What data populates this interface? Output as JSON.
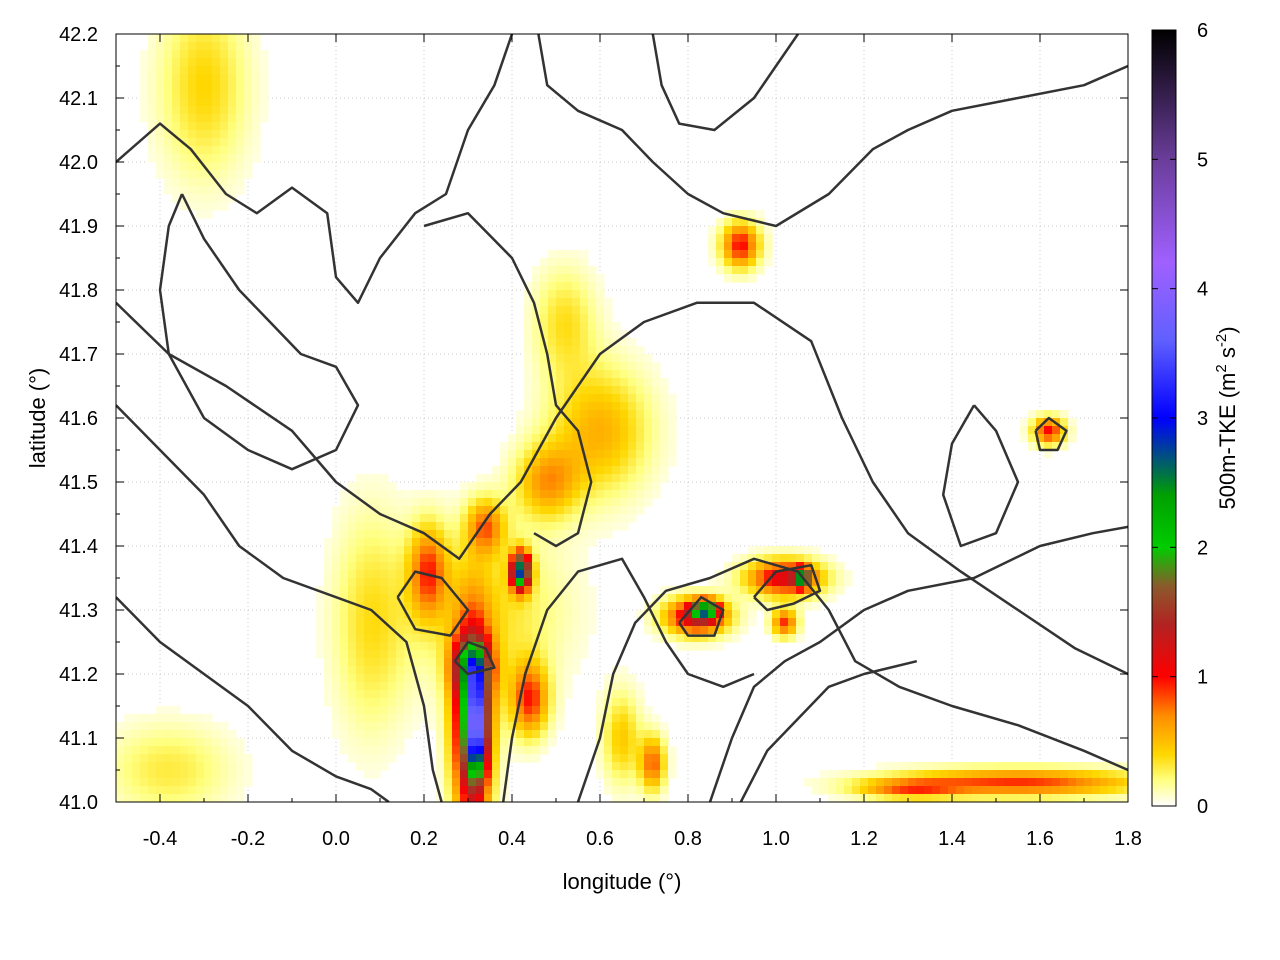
{
  "chart_data": {
    "type": "heatmap",
    "title": "",
    "xlabel": "longitude (°)",
    "ylabel": "latitude (°)",
    "xlim": [
      -0.5,
      1.8
    ],
    "ylim": [
      41.0,
      42.2
    ],
    "x_ticks": [
      "-0.4",
      "-0.2",
      "0.0",
      "0.2",
      "0.4",
      "0.6",
      "0.8",
      "1.0",
      "1.2",
      "1.4",
      "1.6",
      "1.8"
    ],
    "x_tick_values": [
      -0.4,
      -0.2,
      0.0,
      0.2,
      0.4,
      0.6,
      0.8,
      1.0,
      1.2,
      1.4,
      1.6,
      1.8
    ],
    "y_ticks": [
      "41.0",
      "41.1",
      "41.2",
      "41.3",
      "41.4",
      "41.5",
      "41.6",
      "41.7",
      "41.8",
      "41.9",
      "42.0",
      "42.1",
      "42.2"
    ],
    "y_tick_values": [
      41.0,
      41.1,
      41.2,
      41.3,
      41.4,
      41.5,
      41.6,
      41.7,
      41.8,
      41.9,
      42.0,
      42.1,
      42.2
    ],
    "grid": true,
    "colorbar": {
      "label_main": "500m-TKE (m",
      "label_sup1": "2",
      "label_mid": " s",
      "label_sup2": "-2",
      "label_end": ")",
      "range": [
        0,
        6
      ],
      "ticks": [
        "0",
        "1",
        "2",
        "3",
        "4",
        "5",
        "6"
      ],
      "tick_values": [
        0,
        1,
        2,
        3,
        4,
        5,
        6
      ],
      "colormap": [
        {
          "v": 0.0,
          "c": "#ffffff"
        },
        {
          "v": 0.2,
          "c": "#ffff80"
        },
        {
          "v": 0.4,
          "c": "#ffd700"
        },
        {
          "v": 0.7,
          "c": "#ff8c00"
        },
        {
          "v": 1.0,
          "c": "#ff0000"
        },
        {
          "v": 1.4,
          "c": "#b22222"
        },
        {
          "v": 1.7,
          "c": "#8b5a2b"
        },
        {
          "v": 2.0,
          "c": "#00cc00"
        },
        {
          "v": 2.4,
          "c": "#00a000"
        },
        {
          "v": 3.0,
          "c": "#0000ff"
        },
        {
          "v": 3.6,
          "c": "#6060ff"
        },
        {
          "v": 4.2,
          "c": "#a060ff"
        },
        {
          "v": 5.0,
          "c": "#6a3d9a"
        },
        {
          "v": 6.0,
          "c": "#000000"
        }
      ]
    },
    "hotspots": [
      {
        "lon": 0.31,
        "lat": 41.12,
        "slon": 0.03,
        "slat": 0.11,
        "v": 1.9
      },
      {
        "lon": 0.32,
        "lat": 41.12,
        "slon": 0.015,
        "slat": 0.05,
        "v": 2.3
      },
      {
        "lon": 0.31,
        "lat": 41.21,
        "slon": 0.03,
        "slat": 0.03,
        "v": 1.3
      },
      {
        "lon": 0.21,
        "lat": 41.36,
        "slon": 0.03,
        "slat": 0.05,
        "v": 0.8
      },
      {
        "lon": 0.35,
        "lat": 41.3,
        "slon": 0.12,
        "slat": 0.09,
        "v": 0.35
      },
      {
        "lon": 0.42,
        "lat": 41.36,
        "slon": 0.015,
        "slat": 0.02,
        "v": 2.6
      },
      {
        "lon": 0.44,
        "lat": 41.16,
        "slon": 0.03,
        "slat": 0.04,
        "v": 0.9
      },
      {
        "lon": 0.82,
        "lat": 41.29,
        "slon": 0.05,
        "slat": 0.02,
        "v": 1.3
      },
      {
        "lon": 0.84,
        "lat": 41.3,
        "slon": 0.02,
        "slat": 0.01,
        "v": 1.8
      },
      {
        "lon": 1.02,
        "lat": 41.35,
        "slon": 0.06,
        "slat": 0.02,
        "v": 1.2
      },
      {
        "lon": 1.06,
        "lat": 41.35,
        "slon": 0.012,
        "slat": 0.01,
        "v": 2.0
      },
      {
        "lon": 0.92,
        "lat": 41.87,
        "slon": 0.03,
        "slat": 0.025,
        "v": 1.0
      },
      {
        "lon": 0.6,
        "lat": 41.58,
        "slon": 0.08,
        "slat": 0.07,
        "v": 0.55
      },
      {
        "lon": 0.48,
        "lat": 41.5,
        "slon": 0.05,
        "slat": 0.04,
        "v": 0.6
      },
      {
        "lon": 0.34,
        "lat": 41.43,
        "slon": 0.03,
        "slat": 0.03,
        "v": 0.7
      },
      {
        "lon": 1.62,
        "lat": 41.58,
        "slon": 0.025,
        "slat": 0.015,
        "v": 1.0
      },
      {
        "lon": 1.55,
        "lat": 41.03,
        "slon": 0.2,
        "slat": 0.015,
        "v": 0.9
      },
      {
        "lon": 1.3,
        "lat": 41.02,
        "slon": 0.08,
        "slat": 0.01,
        "v": 0.6
      },
      {
        "lon": 0.65,
        "lat": 41.1,
        "slon": 0.03,
        "slat": 0.05,
        "v": 0.45
      },
      {
        "lon": 0.08,
        "lat": 41.28,
        "slon": 0.06,
        "slat": 0.12,
        "v": 0.35
      },
      {
        "lon": -0.3,
        "lat": 42.12,
        "slon": 0.07,
        "slat": 0.1,
        "v": 0.4
      },
      {
        "lon": 0.52,
        "lat": 41.75,
        "slon": 0.05,
        "slat": 0.06,
        "v": 0.35
      },
      {
        "lon": -0.38,
        "lat": 41.05,
        "slon": 0.1,
        "slat": 0.05,
        "v": 0.3
      },
      {
        "lon": 1.02,
        "lat": 41.28,
        "slon": 0.02,
        "slat": 0.015,
        "v": 0.9
      },
      {
        "lon": 0.72,
        "lat": 41.06,
        "slon": 0.02,
        "slat": 0.03,
        "v": 0.8
      }
    ],
    "contours": [
      [
        [
          -0.5,
          42.0
        ],
        [
          -0.4,
          42.06
        ],
        [
          -0.33,
          42.02
        ],
        [
          -0.25,
          41.95
        ],
        [
          -0.18,
          41.92
        ],
        [
          -0.1,
          41.96
        ],
        [
          -0.02,
          41.92
        ],
        [
          0.0,
          41.82
        ],
        [
          0.05,
          41.78
        ],
        [
          0.1,
          41.85
        ],
        [
          0.18,
          41.92
        ],
        [
          0.25,
          41.95
        ],
        [
          0.3,
          42.05
        ],
        [
          0.36,
          42.12
        ],
        [
          0.4,
          42.2
        ]
      ],
      [
        [
          -0.5,
          41.78
        ],
        [
          -0.38,
          41.7
        ],
        [
          -0.25,
          41.65
        ],
        [
          -0.1,
          41.58
        ],
        [
          0.0,
          41.5
        ],
        [
          0.1,
          41.45
        ],
        [
          0.2,
          41.42
        ],
        [
          0.28,
          41.38
        ],
        [
          0.35,
          41.45
        ],
        [
          0.42,
          41.5
        ],
        [
          0.5,
          41.6
        ],
        [
          0.6,
          41.7
        ],
        [
          0.7,
          41.75
        ],
        [
          0.82,
          41.78
        ],
        [
          0.95,
          41.78
        ],
        [
          1.08,
          41.72
        ],
        [
          1.15,
          41.6
        ],
        [
          1.22,
          41.5
        ],
        [
          1.3,
          41.42
        ],
        [
          1.42,
          41.36
        ],
        [
          1.55,
          41.3
        ],
        [
          1.68,
          41.24
        ],
        [
          1.8,
          41.2
        ]
      ],
      [
        [
          -0.5,
          41.62
        ],
        [
          -0.4,
          41.55
        ],
        [
          -0.3,
          41.48
        ],
        [
          -0.22,
          41.4
        ],
        [
          -0.12,
          41.35
        ],
        [
          0.0,
          41.32
        ],
        [
          0.08,
          41.3
        ],
        [
          0.16,
          41.25
        ],
        [
          0.2,
          41.15
        ],
        [
          0.22,
          41.05
        ],
        [
          0.24,
          41.0
        ]
      ],
      [
        [
          -0.5,
          41.32
        ],
        [
          -0.4,
          41.25
        ],
        [
          -0.3,
          41.2
        ],
        [
          -0.2,
          41.15
        ],
        [
          -0.1,
          41.08
        ],
        [
          0.0,
          41.04
        ],
        [
          0.08,
          41.02
        ],
        [
          0.12,
          41.0
        ]
      ],
      [
        [
          0.38,
          41.0
        ],
        [
          0.4,
          41.1
        ],
        [
          0.43,
          41.2
        ],
        [
          0.48,
          41.3
        ],
        [
          0.55,
          41.36
        ],
        [
          0.65,
          41.38
        ],
        [
          0.7,
          41.32
        ],
        [
          0.75,
          41.25
        ],
        [
          0.8,
          41.2
        ],
        [
          0.88,
          41.18
        ],
        [
          0.95,
          41.2
        ]
      ],
      [
        [
          0.55,
          41.0
        ],
        [
          0.6,
          41.1
        ],
        [
          0.63,
          41.2
        ],
        [
          0.68,
          41.28
        ],
        [
          0.75,
          41.33
        ],
        [
          0.85,
          41.35
        ],
        [
          0.95,
          41.38
        ],
        [
          1.05,
          41.36
        ],
        [
          1.12,
          41.3
        ],
        [
          1.18,
          41.22
        ],
        [
          1.28,
          41.18
        ],
        [
          1.4,
          41.15
        ],
        [
          1.55,
          41.12
        ],
        [
          1.7,
          41.08
        ],
        [
          1.8,
          41.05
        ]
      ],
      [
        [
          0.85,
          41.0
        ],
        [
          0.9,
          41.1
        ],
        [
          0.95,
          41.18
        ],
        [
          1.02,
          41.22
        ],
        [
          1.1,
          41.25
        ],
        [
          1.2,
          41.3
        ],
        [
          1.3,
          41.33
        ],
        [
          1.45,
          41.35
        ],
        [
          1.6,
          41.4
        ],
        [
          1.72,
          41.42
        ],
        [
          1.8,
          41.43
        ]
      ],
      [
        [
          0.92,
          41.0
        ],
        [
          0.98,
          41.08
        ],
        [
          1.05,
          41.13
        ],
        [
          1.12,
          41.18
        ],
        [
          1.2,
          41.2
        ],
        [
          1.32,
          41.22
        ]
      ],
      [
        [
          0.2,
          41.9
        ],
        [
          0.3,
          41.92
        ],
        [
          0.4,
          41.85
        ],
        [
          0.45,
          41.78
        ],
        [
          0.48,
          41.7
        ],
        [
          0.5,
          41.62
        ],
        [
          0.55,
          41.58
        ],
        [
          0.58,
          41.5
        ],
        [
          0.55,
          41.42
        ],
        [
          0.5,
          41.4
        ],
        [
          0.45,
          41.42
        ]
      ],
      [
        [
          0.46,
          42.2
        ],
        [
          0.48,
          42.12
        ],
        [
          0.55,
          42.08
        ],
        [
          0.65,
          42.05
        ],
        [
          0.72,
          42.0
        ],
        [
          0.8,
          41.95
        ],
        [
          0.88,
          41.92
        ],
        [
          1.0,
          41.9
        ],
        [
          1.12,
          41.95
        ],
        [
          1.22,
          42.02
        ],
        [
          1.3,
          42.05
        ],
        [
          1.4,
          42.08
        ],
        [
          1.55,
          42.1
        ],
        [
          1.7,
          42.12
        ],
        [
          1.8,
          42.15
        ]
      ],
      [
        [
          0.72,
          42.2
        ],
        [
          0.74,
          42.12
        ],
        [
          0.78,
          42.06
        ],
        [
          0.86,
          42.05
        ],
        [
          0.95,
          42.1
        ],
        [
          1.0,
          42.15
        ],
        [
          1.05,
          42.2
        ]
      ],
      [
        [
          -0.35,
          41.95
        ],
        [
          -0.3,
          41.88
        ],
        [
          -0.22,
          41.8
        ],
        [
          -0.15,
          41.75
        ],
        [
          -0.08,
          41.7
        ],
        [
          0.0,
          41.68
        ],
        [
          0.05,
          41.62
        ],
        [
          0.0,
          41.55
        ],
        [
          -0.1,
          41.52
        ],
        [
          -0.2,
          41.55
        ],
        [
          -0.3,
          41.6
        ],
        [
          -0.38,
          41.7
        ],
        [
          -0.4,
          41.8
        ],
        [
          -0.38,
          41.9
        ],
        [
          -0.35,
          41.95
        ]
      ],
      [
        [
          1.45,
          41.62
        ],
        [
          1.5,
          41.58
        ],
        [
          1.55,
          41.5
        ],
        [
          1.5,
          41.42
        ],
        [
          1.42,
          41.4
        ],
        [
          1.38,
          41.48
        ],
        [
          1.4,
          41.56
        ],
        [
          1.45,
          41.62
        ]
      ],
      [
        [
          0.78,
          41.28
        ],
        [
          0.83,
          41.32
        ],
        [
          0.88,
          41.3
        ],
        [
          0.86,
          41.26
        ],
        [
          0.8,
          41.26
        ],
        [
          0.78,
          41.28
        ]
      ],
      [
        [
          0.95,
          41.32
        ],
        [
          1.0,
          41.36
        ],
        [
          1.08,
          41.37
        ],
        [
          1.1,
          41.33
        ],
        [
          1.04,
          41.31
        ],
        [
          0.98,
          41.3
        ],
        [
          0.95,
          41.32
        ]
      ],
      [
        [
          1.59,
          41.58
        ],
        [
          1.62,
          41.6
        ],
        [
          1.66,
          41.58
        ],
        [
          1.64,
          41.55
        ],
        [
          1.6,
          41.55
        ],
        [
          1.59,
          41.58
        ]
      ],
      [
        [
          0.27,
          41.22
        ],
        [
          0.3,
          41.25
        ],
        [
          0.34,
          41.24
        ],
        [
          0.36,
          41.21
        ],
        [
          0.3,
          41.2
        ],
        [
          0.27,
          41.22
        ]
      ],
      [
        [
          0.14,
          41.32
        ],
        [
          0.18,
          41.36
        ],
        [
          0.24,
          41.35
        ],
        [
          0.3,
          41.3
        ],
        [
          0.26,
          41.26
        ],
        [
          0.18,
          41.27
        ],
        [
          0.14,
          41.32
        ]
      ]
    ]
  }
}
